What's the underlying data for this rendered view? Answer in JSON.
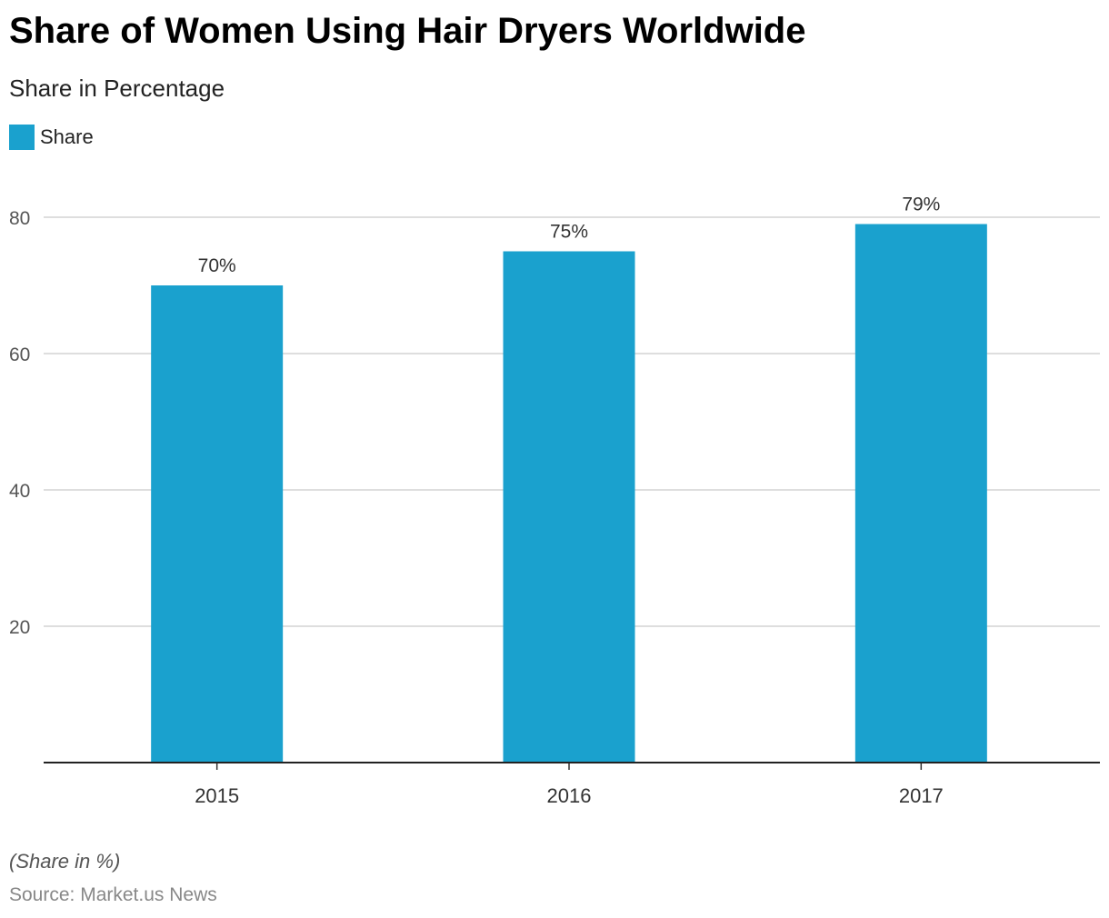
{
  "chart_data": {
    "type": "bar",
    "title": "Share of Women Using Hair Dryers Worldwide",
    "subtitle": "Share in Percentage",
    "legend": [
      "Share"
    ],
    "categories": [
      "2015",
      "2016",
      "2017"
    ],
    "values": [
      70,
      75,
      79
    ],
    "data_labels": [
      "70%",
      "75%",
      "79%"
    ],
    "yticks": [
      20,
      40,
      60,
      80
    ],
    "ylim": [
      0,
      80
    ],
    "xlabel": "",
    "ylabel": "",
    "grid": true,
    "legend_position": "top-left",
    "bar_color": "#1aa1ce"
  },
  "footer": {
    "note": "(Share in %)",
    "source": "Source: Market.us News"
  }
}
